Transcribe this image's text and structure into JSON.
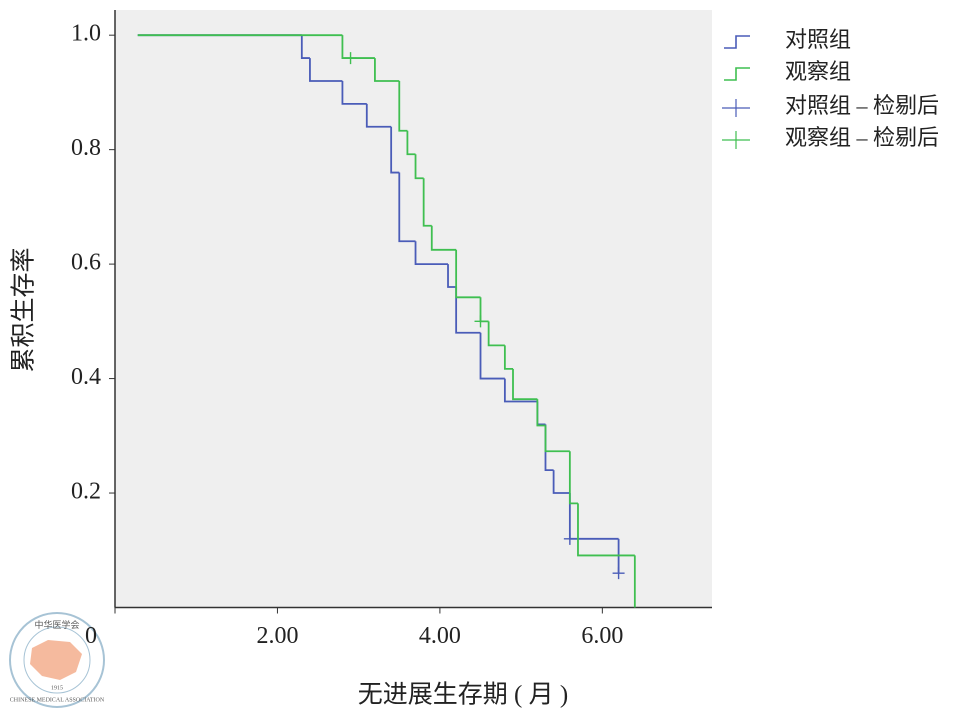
{
  "chart_data": {
    "type": "km-step",
    "x_label": "无进展生存期 ( 月 )",
    "y_label": "累积生存率",
    "xlim": [
      0,
      7.35
    ],
    "ylim": [
      0,
      1.044
    ],
    "xticks": [
      0,
      {
        "value": 2,
        "label": "2.00"
      },
      {
        "value": 4,
        "label": "4.00"
      },
      {
        "value": 6,
        "label": "6.00"
      }
    ],
    "yticks": [
      0.2,
      0.4,
      0.6,
      0.8,
      {
        "value": 1,
        "label": "1.0"
      }
    ],
    "background": "#efefef",
    "legend": "right",
    "series": [
      {
        "name": "对照组",
        "color": "#4a5cb8",
        "x": [
          0.28,
          2.3,
          2.4,
          2.8,
          3.1,
          3.4,
          3.5,
          3.7,
          4.1,
          4.2,
          4.5,
          4.8,
          5.2,
          5.3,
          5.4,
          5.6,
          6.2
        ],
        "values": [
          1.0,
          0.96,
          0.92,
          0.88,
          0.84,
          0.76,
          0.64,
          0.6,
          0.56,
          0.48,
          0.4,
          0.36,
          0.32,
          0.24,
          0.2,
          0.12,
          0.06
        ]
      },
      {
        "name": "观察组",
        "color": "#3fbf50",
        "x": [
          0.28,
          2.8,
          3.2,
          3.5,
          3.6,
          3.7,
          3.8,
          3.9,
          4.2,
          4.5,
          4.6,
          4.8,
          4.9,
          5.2,
          5.3,
          5.6,
          5.7,
          6.4
        ],
        "values": [
          1.0,
          0.96,
          0.92,
          0.833,
          0.792,
          0.75,
          0.667,
          0.625,
          0.542,
          0.5,
          0.458,
          0.417,
          0.364,
          0.318,
          0.273,
          0.182,
          0.091,
          0
        ]
      }
    ],
    "censored": [
      {
        "name": "对照组 – 检剔后",
        "color": "#4a5cb8",
        "x": [
          5.6,
          6.2
        ],
        "values": [
          0.12,
          0.06
        ]
      },
      {
        "name": "观察组 – 检剔后",
        "color": "#3fbf50",
        "x": [
          2.9,
          4.5
        ],
        "values": [
          0.96,
          0.5
        ]
      }
    ]
  },
  "watermark": {
    "name": "中华医学会",
    "english": "CHINESE MEDICAL ASSOCIATION",
    "year": "1915"
  }
}
